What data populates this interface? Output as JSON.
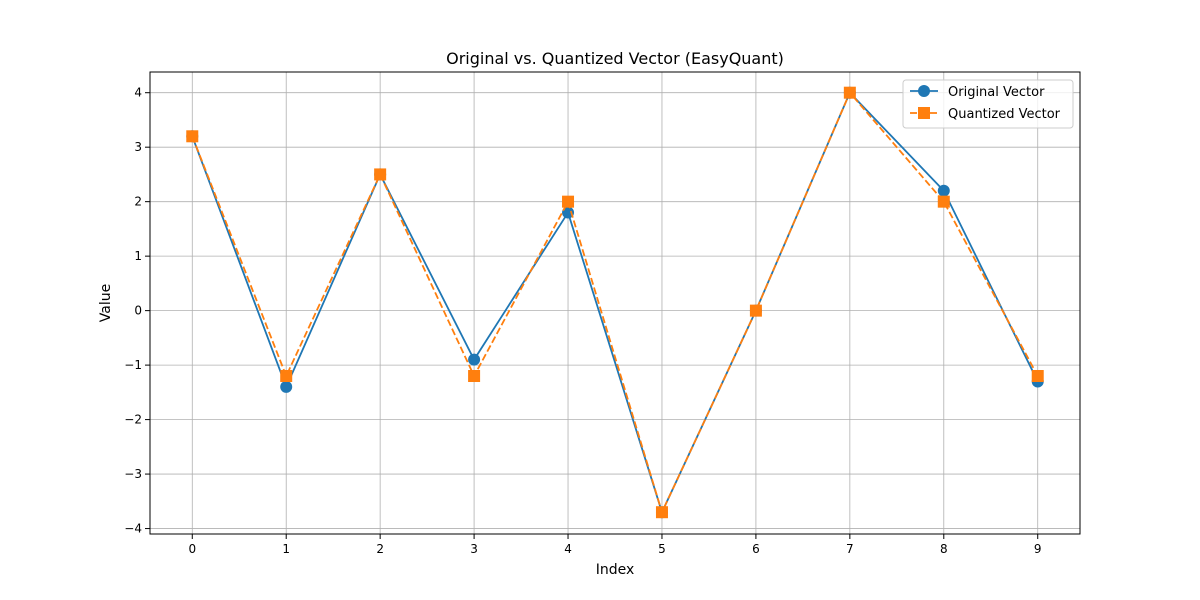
{
  "chart_data": {
    "type": "line",
    "title": "Original vs. Quantized Vector (EasyQuant)",
    "xlabel": "Index",
    "ylabel": "Value",
    "x": [
      0,
      1,
      2,
      3,
      4,
      5,
      6,
      7,
      8,
      9
    ],
    "xlim": [
      -0.45,
      9.45
    ],
    "ylim": [
      -4.1,
      4.38
    ],
    "xticks": [
      "0",
      "1",
      "2",
      "3",
      "4",
      "5",
      "6",
      "7",
      "8",
      "9"
    ],
    "yticks": [
      -4,
      -3,
      -2,
      -1,
      0,
      1,
      2,
      3,
      4
    ],
    "ytick_labels": [
      "−4",
      "−3",
      "−2",
      "−1",
      "0",
      "1",
      "2",
      "3",
      "4"
    ],
    "grid": true,
    "legend_position": "top-right",
    "series": [
      {
        "name": "Original Vector",
        "values": [
          3.2,
          -1.4,
          2.5,
          -0.9,
          1.8,
          -3.7,
          0.0,
          4.0,
          2.2,
          -1.3
        ],
        "color": "#1f77b4",
        "linestyle": "solid",
        "marker": "circle"
      },
      {
        "name": "Quantized Vector",
        "values": [
          3.2,
          -1.2,
          2.5,
          -1.2,
          2.0,
          -3.7,
          0.0,
          4.0,
          2.0,
          -1.2
        ],
        "color": "#ff7f0e",
        "linestyle": "dashed",
        "marker": "square"
      }
    ]
  }
}
